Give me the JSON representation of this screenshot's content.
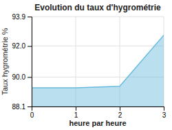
{
  "chart_data": {
    "type": "area",
    "title": "Evolution du taux d'hygrométrie",
    "xlabel": "heure par heure",
    "ylabel": "Taux hygrométrie %",
    "x": [
      0,
      1,
      2,
      3
    ],
    "values": [
      89.3,
      89.3,
      89.4,
      92.7
    ],
    "color": "#66bbdd",
    "xlim": [
      0,
      3
    ],
    "ylim": [
      88.1,
      93.9
    ],
    "xticks": [
      0,
      1,
      2,
      3
    ],
    "yticks": [
      88.1,
      {
        "value": 90.0,
        "label": "90.0"
      },
      {
        "value": 92.0,
        "label": "92.0"
      },
      93.9
    ],
    "grid": true
  }
}
